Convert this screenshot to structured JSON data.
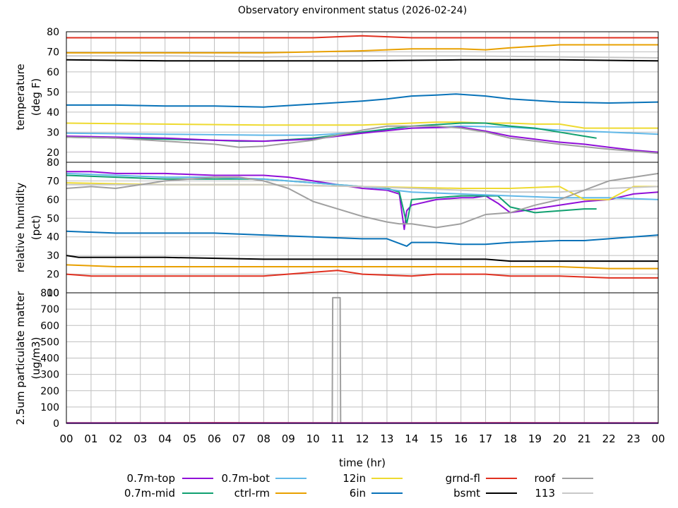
{
  "title": "Observatory environment status (2026-02-24)",
  "xlabel": "time (hr)",
  "x_ticks": [
    "00",
    "01",
    "02",
    "03",
    "04",
    "05",
    "06",
    "07",
    "08",
    "09",
    "10",
    "11",
    "12",
    "13",
    "14",
    "15",
    "16",
    "17",
    "18",
    "19",
    "20",
    "21",
    "22",
    "23",
    "00"
  ],
  "chart_data": [
    {
      "type": "line",
      "ylabel": [
        "temperature",
        "(deg F)"
      ],
      "ylim": [
        15,
        80
      ],
      "y_ticks": [
        20,
        30,
        40,
        50,
        60,
        70,
        80
      ],
      "xlim": [
        0,
        24
      ],
      "grid": true,
      "series": [
        {
          "name": "grnd-fl",
          "color": "#e03020",
          "x": [
            0,
            2,
            4,
            6,
            8,
            10,
            12,
            14,
            16,
            18,
            20,
            22,
            24
          ],
          "y": [
            77,
            77,
            77,
            77,
            77,
            77,
            78,
            77,
            77,
            77,
            77,
            77,
            77
          ]
        },
        {
          "name": "ctrl-rm",
          "color": "#e8a000",
          "x": [
            0,
            4,
            8,
            10,
            12,
            14,
            16,
            17,
            18,
            20,
            22,
            24
          ],
          "y": [
            69.5,
            69.5,
            69.5,
            70,
            70.5,
            71.5,
            71.5,
            71,
            72,
            73.5,
            73.5,
            73.5
          ]
        },
        {
          "name": "113",
          "color": "#c8c8c8",
          "x": [
            0,
            4,
            8,
            12,
            16,
            20,
            24
          ],
          "y": [
            68,
            68,
            67.5,
            68,
            68,
            67.5,
            67
          ]
        },
        {
          "name": "bsmt",
          "color": "#000000",
          "x": [
            0,
            4,
            8,
            12,
            16,
            20,
            24
          ],
          "y": [
            66,
            65.5,
            65.5,
            65.5,
            66,
            66,
            65.5
          ]
        },
        {
          "name": "6in",
          "color": "#0872b8",
          "x": [
            0,
            2,
            4,
            6,
            8,
            10,
            12,
            13,
            14,
            15,
            15.8,
            17,
            18,
            20,
            22,
            24
          ],
          "y": [
            43.5,
            43.5,
            43,
            43,
            42.5,
            44,
            45.5,
            46.5,
            48,
            48.5,
            49,
            48,
            46.5,
            45,
            44.5,
            45
          ]
        },
        {
          "name": "12in",
          "color": "#eeda30",
          "x": [
            0,
            4,
            8,
            10,
            12,
            13,
            14,
            15,
            16,
            17,
            18,
            19,
            20,
            21,
            22,
            24
          ],
          "y": [
            34.5,
            34,
            33.5,
            33.5,
            33.5,
            34,
            34.5,
            35,
            35,
            34.5,
            34.5,
            34,
            34,
            32,
            32,
            32
          ]
        },
        {
          "name": "0.7m-bot",
          "color": "#60b8e8",
          "x": [
            0,
            4,
            8,
            10,
            12,
            14,
            16,
            18,
            20,
            22,
            24
          ],
          "y": [
            29.5,
            29,
            28.5,
            28.5,
            30,
            32,
            33,
            32.5,
            31,
            30,
            29
          ]
        },
        {
          "name": "0.7m-mid",
          "color": "#10a070",
          "x": [
            0,
            2,
            4,
            6,
            7,
            8,
            10,
            12,
            14,
            16,
            17,
            18,
            19,
            20,
            21,
            21.5
          ],
          "y": [
            27.5,
            27,
            26.5,
            26,
            25.5,
            25.5,
            27,
            30,
            33,
            34.5,
            34.5,
            33,
            32,
            30,
            28,
            27
          ]
        },
        {
          "name": "0.7m-top",
          "color": "#9010d8",
          "x": [
            0,
            2,
            4,
            6,
            8,
            10,
            12,
            14,
            16,
            17,
            18,
            19,
            20,
            21,
            22,
            23,
            24
          ],
          "y": [
            28,
            27.5,
            27,
            26,
            25.5,
            26.5,
            29.5,
            32,
            32.5,
            30.5,
            28,
            26.5,
            25,
            24,
            22.5,
            21,
            20
          ]
        },
        {
          "name": "roof",
          "color": "#a0a0a0",
          "x": [
            0,
            2,
            4,
            6,
            7,
            8,
            10,
            12,
            13,
            14,
            15,
            16,
            17,
            18,
            20,
            22,
            24
          ],
          "y": [
            27.5,
            27,
            25.5,
            24,
            22.5,
            23,
            26,
            31,
            33,
            33,
            33,
            32,
            30,
            27,
            24,
            21.5,
            19.5
          ]
        }
      ]
    },
    {
      "type": "line",
      "ylabel": [
        "relative humidity",
        "(pct)"
      ],
      "ylim": [
        10,
        80
      ],
      "y_ticks": [
        10,
        20,
        30,
        40,
        50,
        60,
        70,
        80
      ],
      "xlim": [
        0,
        24
      ],
      "grid": true,
      "series": [
        {
          "name": "0.7m-top",
          "color": "#9010d8",
          "x": [
            0,
            1,
            2,
            4,
            6,
            8,
            9,
            10,
            11,
            12,
            13,
            13.5,
            13.7,
            13.8,
            14,
            15,
            16,
            16.5,
            17,
            17.5,
            18,
            19,
            20,
            21,
            22,
            23,
            24
          ],
          "y": [
            75,
            75,
            74,
            74,
            73,
            73,
            72,
            70,
            68,
            66,
            65,
            63,
            44,
            54,
            57,
            60,
            61,
            61,
            62,
            58,
            53,
            55,
            57,
            59,
            60,
            63,
            64
          ]
        },
        {
          "name": "0.7m-mid",
          "color": "#10a070",
          "x": [
            0,
            2,
            4,
            6,
            8,
            10,
            12,
            13,
            13.5,
            13.8,
            14,
            15,
            16,
            17,
            17.5,
            18,
            19,
            20,
            21,
            21.5
          ],
          "y": [
            73,
            72,
            71,
            71,
            71,
            69,
            67,
            66,
            64,
            47,
            60,
            61,
            62,
            62,
            62,
            56,
            53,
            54,
            55,
            55
          ]
        },
        {
          "name": "0.7m-bot",
          "color": "#60b8e8",
          "x": [
            0,
            2,
            4,
            6,
            8,
            10,
            12,
            14,
            16,
            18,
            20,
            22,
            24
          ],
          "y": [
            74,
            73,
            72,
            72,
            71,
            69,
            67,
            64,
            63,
            62,
            61,
            61,
            60
          ]
        },
        {
          "name": "12in",
          "color": "#eeda30",
          "x": [
            0,
            4,
            8,
            12,
            16,
            18,
            20,
            21,
            22,
            23,
            24
          ],
          "y": [
            69,
            68,
            68,
            67,
            66,
            66,
            67,
            60,
            60,
            67,
            67
          ]
        },
        {
          "name": "113",
          "color": "#c8c8c8",
          "x": [
            0,
            4,
            8,
            12,
            14,
            16,
            18,
            20,
            21,
            22,
            24
          ],
          "y": [
            68,
            68,
            68,
            67,
            66,
            65,
            64,
            64,
            65,
            66,
            67
          ]
        },
        {
          "name": "roof",
          "color": "#a0a0a0",
          "x": [
            0,
            1,
            2,
            3,
            4,
            5,
            6,
            7,
            8,
            9,
            10,
            11,
            12,
            13,
            13.5,
            14,
            15,
            16,
            17,
            18,
            19,
            20,
            21,
            22,
            23,
            24
          ],
          "y": [
            66,
            67,
            66,
            68,
            70,
            71,
            72,
            72,
            70,
            66,
            59,
            55,
            51,
            48,
            47,
            47,
            45,
            47,
            52,
            53,
            57,
            60,
            65,
            70,
            72,
            74
          ]
        },
        {
          "name": "6in",
          "color": "#0872b8",
          "x": [
            0,
            2,
            4,
            6,
            8,
            10,
            12,
            13,
            13.8,
            14,
            15,
            16,
            17,
            18,
            20,
            21,
            22,
            24
          ],
          "y": [
            43,
            42,
            42,
            42,
            41,
            40,
            39,
            39,
            35,
            37,
            37,
            36,
            36,
            37,
            38,
            38,
            39,
            41
          ]
        },
        {
          "name": "bsmt",
          "color": "#000000",
          "x": [
            0,
            0.5,
            1,
            4,
            8,
            12,
            16,
            17,
            18,
            20,
            24
          ],
          "y": [
            30,
            29,
            29,
            29,
            28,
            28,
            28,
            28,
            27,
            27,
            27
          ]
        },
        {
          "name": "ctrl-rm",
          "color": "#e8a000",
          "x": [
            0,
            2,
            4,
            6,
            8,
            10,
            12,
            14,
            16,
            18,
            20,
            22,
            24
          ],
          "y": [
            25,
            24,
            24,
            24,
            24,
            24,
            24,
            24,
            24,
            24,
            24,
            23,
            23
          ]
        },
        {
          "name": "grnd-fl",
          "color": "#e03020",
          "x": [
            0,
            1,
            2,
            6,
            8,
            10,
            11,
            12,
            14,
            15,
            17,
            18,
            20,
            22,
            24
          ],
          "y": [
            20,
            19,
            19,
            19,
            19,
            21,
            22,
            20,
            19,
            20,
            20,
            19,
            19,
            18,
            18
          ]
        }
      ]
    },
    {
      "type": "line",
      "ylabel": [
        "2.5um particulate matter",
        "(ug/m3)"
      ],
      "ylim": [
        0,
        800
      ],
      "y_ticks": [
        0,
        100,
        200,
        300,
        400,
        500,
        600,
        700,
        800
      ],
      "xlim": [
        0,
        24
      ],
      "grid": true,
      "series": [
        {
          "name": "roof",
          "color": "#a0a0a0",
          "x": [
            0,
            10.78,
            10.8,
            11.1,
            11.12,
            24
          ],
          "y": [
            3,
            3,
            770,
            770,
            3,
            3
          ]
        },
        {
          "name": "grnd-fl",
          "color": "#e03020",
          "x": [
            0,
            6,
            12,
            18,
            24
          ],
          "y": [
            2,
            3,
            2,
            3,
            2
          ]
        },
        {
          "name": "0.7m-top",
          "color": "#9010d8",
          "x": [
            0,
            12,
            24
          ],
          "y": [
            1,
            1,
            1
          ]
        }
      ]
    }
  ],
  "legend": [
    {
      "label": "0.7m-top",
      "color": "#9010d8"
    },
    {
      "label": "0.7m-bot",
      "color": "#60b8e8"
    },
    {
      "label": "12in",
      "color": "#eeda30"
    },
    {
      "label": "grnd-fl",
      "color": "#e03020"
    },
    {
      "label": "roof",
      "color": "#a0a0a0"
    },
    {
      "label": "0.7m-mid",
      "color": "#10a070"
    },
    {
      "label": "ctrl-rm",
      "color": "#e8a000"
    },
    {
      "label": "6in",
      "color": "#0872b8"
    },
    {
      "label": "bsmt",
      "color": "#000000"
    },
    {
      "label": "113",
      "color": "#c8c8c8"
    }
  ]
}
